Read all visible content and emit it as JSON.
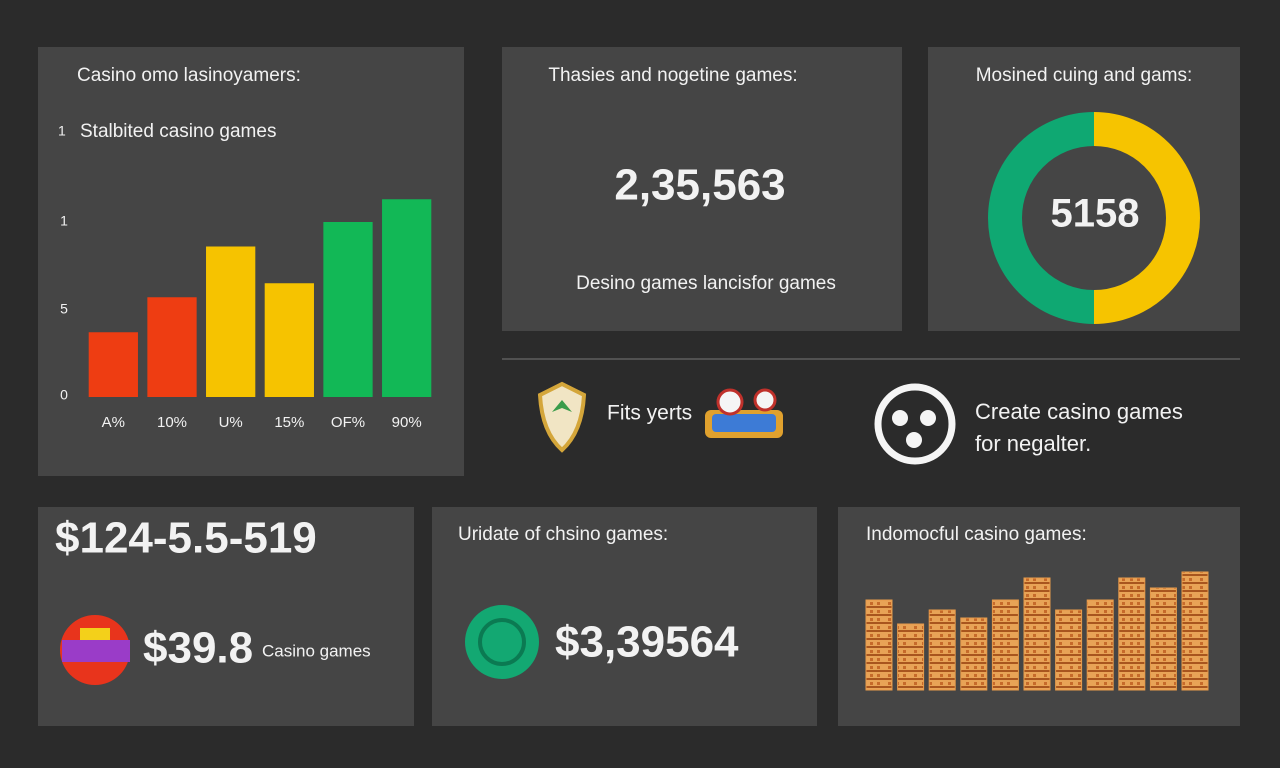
{
  "chart_data": [
    {
      "type": "bar",
      "title": "Casino omo lasinoyamers:",
      "subtitle": "Stalbited casino games",
      "subtitle_marker": "1",
      "categories": [
        "A%",
        "10%",
        "U%",
        "15%",
        "OF%",
        "90%"
      ],
      "values": [
        3.7,
        5.7,
        8.6,
        6.5,
        10,
        11.3
      ],
      "colors": [
        "#ee3d12",
        "#ee3d12",
        "#f6c300",
        "#f6c300",
        "#12b856",
        "#12b856"
      ],
      "ylim": [
        0,
        14
      ],
      "y_axis_labels": [
        "1",
        "5",
        "0"
      ]
    },
    {
      "type": "donut",
      "title": "Mosined cuing and gams:",
      "center_label": "5158",
      "values": [
        50,
        50
      ],
      "colors": [
        "#f6c400",
        "#0fa872"
      ]
    },
    {
      "type": "coins",
      "title": "Indomocful casino games:",
      "values": [
        90,
        66,
        80,
        72,
        90,
        112,
        80,
        90,
        112,
        102,
        118
      ],
      "color": "#e79a4a",
      "ylim": [
        0,
        130
      ]
    }
  ],
  "stats": {
    "title": "Thasies and nogetine games:",
    "value": "2,35,563",
    "caption": "Desino games lancisfor games"
  },
  "features": [
    "Fits yerts",
    "Create casino games",
    "for negalter."
  ],
  "summary": {
    "amount": "$124-5.5-519",
    "sub_amount": "$39.8",
    "sub_label": "Casino games"
  },
  "update": {
    "title": "Uridate of chsino games:",
    "amount": "$3,39564"
  }
}
